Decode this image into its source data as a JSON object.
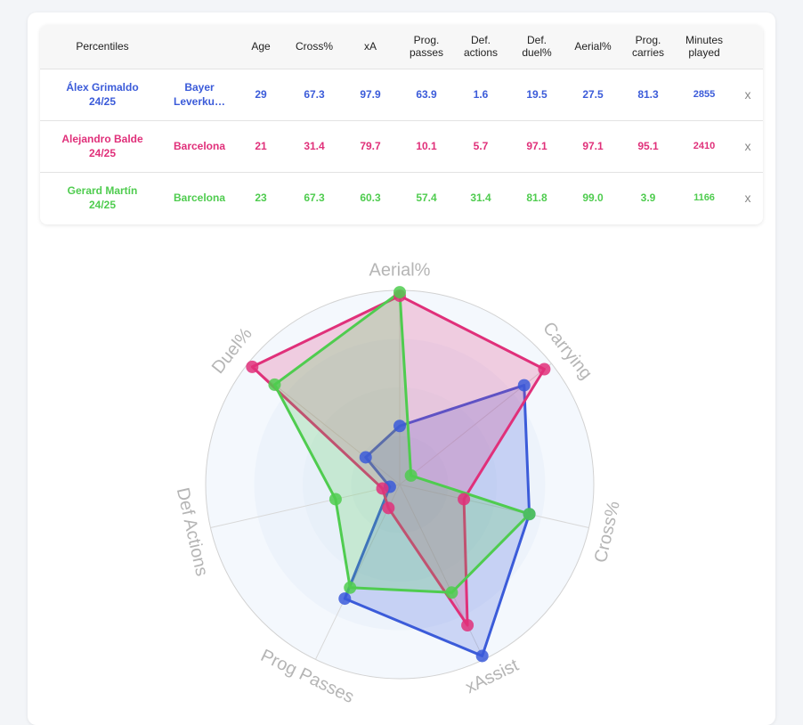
{
  "table": {
    "headers": [
      {
        "key": "name",
        "label": "Percentiles"
      },
      {
        "key": "team",
        "label": ""
      },
      {
        "key": "age",
        "label": "Age"
      },
      {
        "key": "cross",
        "label": "Cross%"
      },
      {
        "key": "xa",
        "label": "xA"
      },
      {
        "key": "prog_passes",
        "label": "Prog.\npasses"
      },
      {
        "key": "def_actions",
        "label": "Def.\nactions"
      },
      {
        "key": "def_duel",
        "label": "Def.\nduel%"
      },
      {
        "key": "aerial",
        "label": "Aerial%"
      },
      {
        "key": "prog_carries",
        "label": "Prog.\ncarries"
      },
      {
        "key": "minutes",
        "label": "Minutes\nplayed"
      },
      {
        "key": "remove",
        "label": ""
      }
    ],
    "rows": [
      {
        "name": "Álex Grimaldo",
        "season": "24/25",
        "team": "Bayer Leverku…",
        "age": "29",
        "cross": "67.3",
        "xa": "97.9",
        "prog_passes": "63.9",
        "def_actions": "1.6",
        "def_duel": "19.5",
        "aerial": "27.5",
        "prog_carries": "81.3",
        "minutes": "2855",
        "remove": "x",
        "color": "#3b5bd9"
      },
      {
        "name": "Alejandro Balde",
        "season": "24/25",
        "team": "Barcelona",
        "age": "21",
        "cross": "31.4",
        "xa": "79.7",
        "prog_passes": "10.1",
        "def_actions": "5.7",
        "def_duel": "97.1",
        "aerial": "97.1",
        "prog_carries": "95.1",
        "minutes": "2410",
        "remove": "x",
        "color": "#e0307a"
      },
      {
        "name": "Gerard Martín",
        "season": "24/25",
        "team": "Barcelona",
        "age": "23",
        "cross": "67.3",
        "xa": "60.3",
        "prog_passes": "57.4",
        "def_actions": "31.4",
        "def_duel": "81.8",
        "aerial": "99.0",
        "prog_carries": "3.9",
        "minutes": "1166",
        "remove": "x",
        "color": "#4fcc4f"
      }
    ]
  },
  "chart_data": {
    "type": "radar",
    "axes": [
      "Aerial%",
      "Carrying",
      "Cross%",
      "xAssist",
      "Prog Passes",
      "Def Actions",
      "Duel%"
    ],
    "range": [
      0,
      100
    ],
    "rings": 4,
    "series": [
      {
        "name": "Álex Grimaldo",
        "color": "#3b5bd9",
        "values": [
          27.5,
          81.3,
          67.3,
          97.9,
          63.9,
          1.6,
          19.5
        ]
      },
      {
        "name": "Alejandro Balde",
        "color": "#e0307a",
        "values": [
          97.1,
          95.1,
          31.4,
          79.7,
          10.1,
          5.7,
          97.1
        ]
      },
      {
        "name": "Gerard Martín",
        "color": "#4fcc4f",
        "values": [
          99.0,
          3.9,
          67.3,
          60.3,
          57.4,
          31.4,
          81.8
        ]
      }
    ]
  }
}
